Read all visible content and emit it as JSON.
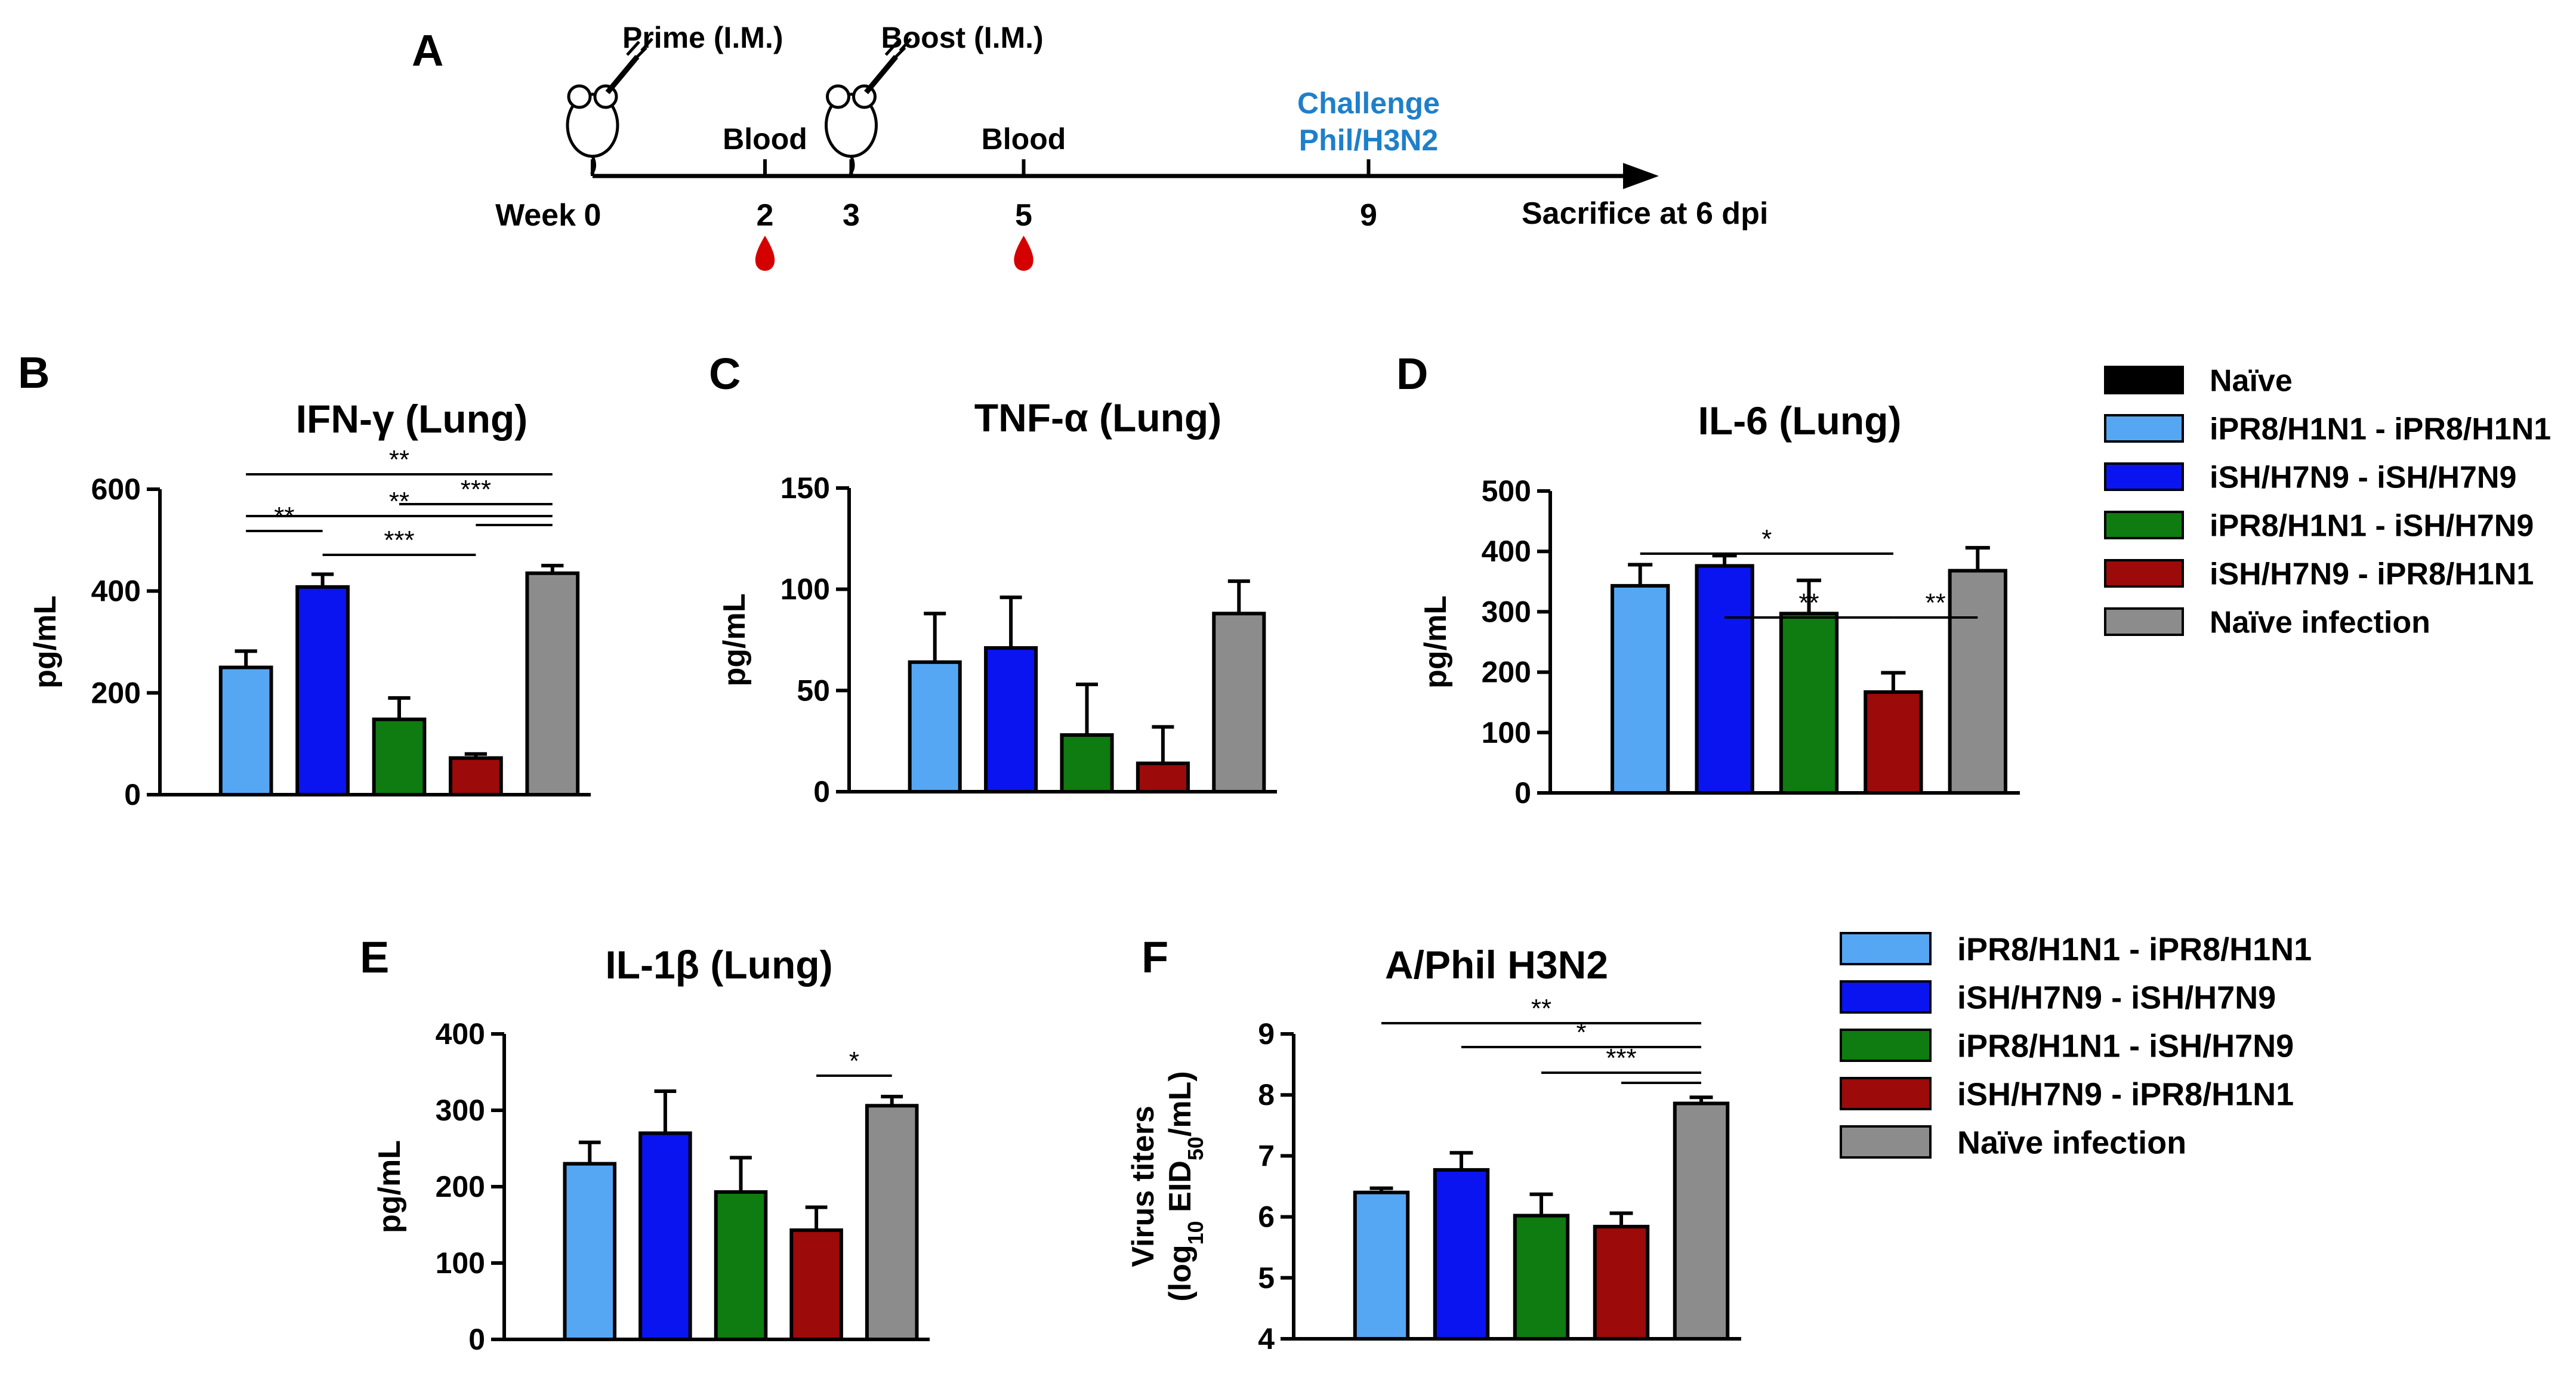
{
  "timeline": {
    "panel_letter": "A",
    "week_label": "Week",
    "end_label": "Sacrifice at 6 dpi",
    "ticks": [
      {
        "week": 0,
        "label": "0",
        "above": "Prime (I.M.)",
        "mouse": true,
        "drop": false
      },
      {
        "week": 2,
        "label": "2",
        "above": "Blood",
        "mouse": false,
        "drop": true
      },
      {
        "week": 3,
        "label": "3",
        "above": "Boost (I.M.)",
        "mouse": true,
        "drop": false
      },
      {
        "week": 5,
        "label": "5",
        "above": "Blood",
        "mouse": false,
        "drop": true
      },
      {
        "week": 9,
        "label": "9",
        "above": "Challenge\nPhil/H3N2",
        "mouse": false,
        "drop": false,
        "highlight": true
      }
    ],
    "colors": {
      "challenge_text": "#1f7fc9",
      "drop": "#d40000"
    }
  },
  "groups": [
    {
      "name": "iPR8/H1N1 - iPR8/H1N1",
      "color": "#55a7f4"
    },
    {
      "name": "iSH/H7N9 - iSH/H7N9",
      "color": "#0a14f0"
    },
    {
      "name": "iPR8/H1N1 - iSH/H7N9",
      "color": "#0e7c10"
    },
    {
      "name": "iSH/H7N9 - iPR8/H1N1",
      "color": "#9c0a0a"
    },
    {
      "name": "Naïve infection",
      "color": "#8c8c8c"
    }
  ],
  "legend_top": {
    "items": [
      {
        "name": "Naïve",
        "color": "#000000"
      },
      {
        "name": "iPR8/H1N1 - iPR8/H1N1",
        "color": "#55a7f4"
      },
      {
        "name": "iSH/H7N9 - iSH/H7N9",
        "color": "#0a14f0"
      },
      {
        "name": "iPR8/H1N1 - iSH/H7N9",
        "color": "#0e7c10"
      },
      {
        "name": "iSH/H7N9 - iPR8/H1N1",
        "color": "#9c0a0a"
      },
      {
        "name": "Naïve infection",
        "color": "#8c8c8c"
      }
    ]
  },
  "legend_bottom": {
    "items": [
      {
        "name": "iPR8/H1N1 - iPR8/H1N1",
        "color": "#55a7f4"
      },
      {
        "name": "iSH/H7N9 - iSH/H7N9",
        "color": "#0a14f0"
      },
      {
        "name": "iPR8/H1N1 - iSH/H7N9",
        "color": "#0e7c10"
      },
      {
        "name": "iSH/H7N9 - iPR8/H1N1",
        "color": "#9c0a0a"
      },
      {
        "name": "Naïve infection",
        "color": "#8c8c8c"
      }
    ]
  },
  "chart_data": [
    {
      "panel": "B",
      "type": "bar",
      "title": "IFN-γ (Lung)",
      "ylabel": "pg/mL",
      "xlabel": "",
      "ylim": [
        0,
        600
      ],
      "yticks": [
        0,
        200,
        400,
        600
      ],
      "categories": [
        "iPR8/H1N1 - iPR8/H1N1",
        "iSH/H7N9 - iSH/H7N9",
        "iPR8/H1N1 - iSH/H7N9",
        "iSH/H7N9 - iPR8/H1N1",
        "Naïve infection"
      ],
      "values": [
        250,
        408,
        148,
        72,
        435
      ],
      "errors": [
        32,
        25,
        42,
        8,
        15
      ],
      "significance": [
        {
          "from": 0,
          "to": 4,
          "label": "**"
        },
        {
          "from": 2,
          "to": 4,
          "label": "***"
        },
        {
          "from": 0,
          "to": 4,
          "label": "**"
        },
        {
          "from": 3,
          "to": 4,
          "label": ""
        },
        {
          "from": 0,
          "to": 1,
          "label": "**"
        },
        {
          "from": 1,
          "to": 3,
          "label": "***"
        }
      ]
    },
    {
      "panel": "C",
      "type": "bar",
      "title": "TNF-α (Lung)",
      "ylabel": "pg/mL",
      "xlabel": "",
      "ylim": [
        0,
        150
      ],
      "yticks": [
        0,
        50,
        100,
        150
      ],
      "categories": [
        "iPR8/H1N1 - iPR8/H1N1",
        "iSH/H7N9 - iSH/H7N9",
        "iPR8/H1N1 - iSH/H7N9",
        "iSH/H7N9 - iPR8/H1N1",
        "Naïve infection"
      ],
      "values": [
        64,
        71,
        28,
        14,
        88
      ],
      "errors": [
        24,
        25,
        25,
        18,
        16
      ],
      "significance": []
    },
    {
      "panel": "D",
      "type": "bar",
      "title": "IL-6 (Lung)",
      "ylabel": "pg/mL",
      "xlabel": "",
      "ylim": [
        0,
        500
      ],
      "yticks": [
        0,
        100,
        200,
        300,
        400,
        500
      ],
      "categories": [
        "iPR8/H1N1 - iPR8/H1N1",
        "iSH/H7N9 - iSH/H7N9",
        "iPR8/H1N1 - iSH/H7N9",
        "iSH/H7N9 - iPR8/H1N1",
        "Naïve infection"
      ],
      "values": [
        343,
        376,
        297,
        167,
        368
      ],
      "errors": [
        35,
        17,
        55,
        32,
        38
      ],
      "significance": [
        {
          "from": 0,
          "to": 3,
          "label": "*"
        },
        {
          "from": 1,
          "to": 3,
          "label": "**"
        },
        {
          "from": 3,
          "to": 4,
          "label": "**"
        }
      ]
    },
    {
      "panel": "E",
      "type": "bar",
      "title": "IL-1β (Lung)",
      "ylabel": "pg/mL",
      "xlabel": "",
      "ylim": [
        0,
        400
      ],
      "yticks": [
        0,
        100,
        200,
        300,
        400
      ],
      "categories": [
        "iPR8/H1N1 - iPR8/H1N1",
        "iSH/H7N9 - iSH/H7N9",
        "iPR8/H1N1 - iSH/H7N9",
        "iSH/H7N9 - iPR8/H1N1",
        "Naïve infection"
      ],
      "values": [
        230,
        270,
        193,
        143,
        306
      ],
      "errors": [
        28,
        55,
        45,
        30,
        12
      ],
      "significance": [
        {
          "from": 3,
          "to": 4,
          "label": "*"
        }
      ]
    },
    {
      "panel": "F",
      "type": "bar",
      "title": "A/Phil H3N2",
      "ylabel": "Virus titers\n(log10 EID50/mL)",
      "xlabel": "",
      "ylim": [
        4,
        9
      ],
      "yticks": [
        4,
        5,
        6,
        7,
        8,
        9
      ],
      "categories": [
        "iPR8/H1N1 - iPR8/H1N1",
        "iSH/H7N9 - iSH/H7N9",
        "iPR8/H1N1 - iSH/H7N9",
        "iSH/H7N9 - iPR8/H1N1",
        "Naïve infection"
      ],
      "values": [
        6.4,
        6.77,
        6.02,
        5.84,
        7.86
      ],
      "errors": [
        0.07,
        0.28,
        0.35,
        0.22,
        0.1
      ],
      "significance": [
        {
          "from": 0,
          "to": 4,
          "label": "**"
        },
        {
          "from": 1,
          "to": 4,
          "label": "*"
        },
        {
          "from": 2,
          "to": 4,
          "label": "***"
        },
        {
          "from": 3,
          "to": 4,
          "label": ""
        }
      ]
    }
  ]
}
